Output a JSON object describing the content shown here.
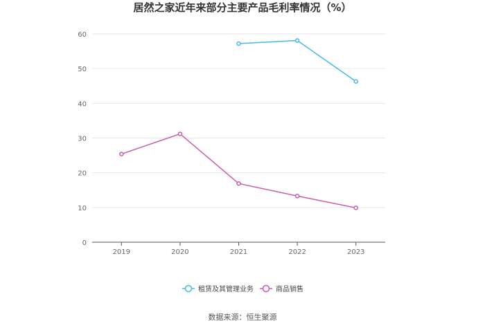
{
  "chart_data": {
    "type": "line",
    "title": "居然之家近年来部分主要产品毛利率情况（%）",
    "xlabel": "",
    "ylabel": "",
    "categories": [
      "2019",
      "2020",
      "2021",
      "2022",
      "2023"
    ],
    "ylim": [
      0,
      60
    ],
    "yticks": [
      0,
      10,
      20,
      30,
      40,
      50,
      60
    ],
    "grid": true,
    "legend_position": "bottom",
    "series": [
      {
        "name": "租赁及其管理业务",
        "color": "#4ab8e8",
        "values": [
          null,
          null,
          57.2,
          58.1,
          46.3
        ]
      },
      {
        "name": "商品销售",
        "color": "#cc5aa8",
        "values": [
          25.4,
          31.2,
          16.9,
          13.3,
          9.9
        ]
      }
    ]
  },
  "source": "数据来源：恒生聚源"
}
